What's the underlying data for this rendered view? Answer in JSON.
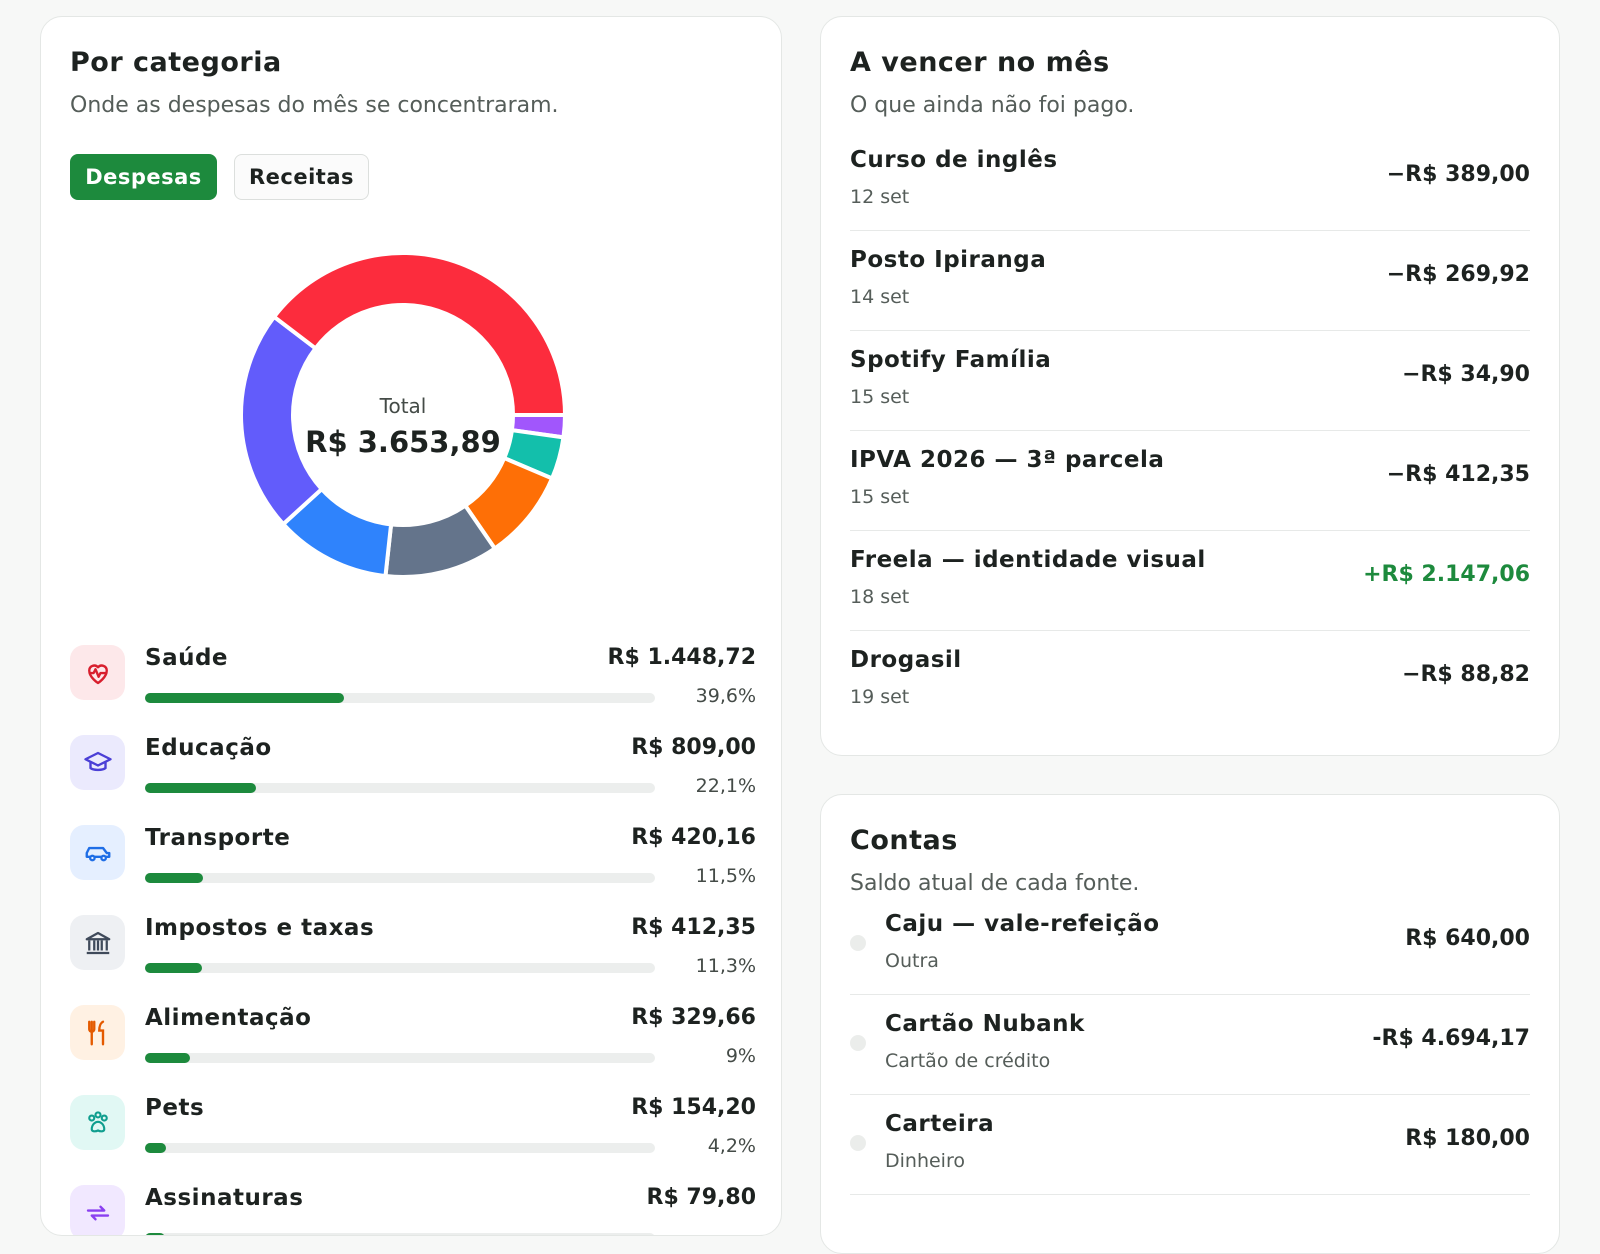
{
  "category_card": {
    "title": "Por categoria",
    "subtitle": "Onde as despesas do mês se concentraram.",
    "toggle": {
      "expenses_label": "Despesas",
      "income_label": "Receitas",
      "selected": "Despesas"
    },
    "donut": {
      "total_label": "Total",
      "total_value": "R$ 3.653,89"
    },
    "categories": [
      {
        "name": "Saúde",
        "amount": "R$ 1.448,72",
        "percent_label": "39,6%",
        "share": 0.396,
        "color": "#fc2c3d",
        "icon": "heart-pulse-icon",
        "icon_bg": "#fde8ea",
        "icon_color": "#d81f2e"
      },
      {
        "name": "Educação",
        "amount": "R$ 809,00",
        "percent_label": "22,1%",
        "share": 0.221,
        "color": "#625cfb",
        "icon": "graduation-cap-icon",
        "icon_bg": "#ebeafd",
        "icon_color": "#4b3fd6"
      },
      {
        "name": "Transporte",
        "amount": "R$ 420,16",
        "percent_label": "11,5%",
        "share": 0.115,
        "color": "#2f83fc",
        "icon": "car-icon",
        "icon_bg": "#e5efff",
        "icon_color": "#1f6ee6"
      },
      {
        "name": "Impostos e taxas",
        "amount": "R$ 412,35",
        "percent_label": "11,3%",
        "share": 0.113,
        "color": "#64748b",
        "icon": "bank-icon",
        "icon_bg": "#eef0f3",
        "icon_color": "#3f4a5a"
      },
      {
        "name": "Alimentação",
        "amount": "R$ 329,66",
        "percent_label": "9%",
        "share": 0.09,
        "color": "#fe6f06",
        "icon": "utensils-icon",
        "icon_bg": "#fff1e3",
        "icon_color": "#e45a00"
      },
      {
        "name": "Pets",
        "amount": "R$ 154,20",
        "percent_label": "4,2%",
        "share": 0.042,
        "color": "#13bfab",
        "icon": "paw-icon",
        "icon_bg": "#e1f8f4",
        "icon_color": "#0f9e8e"
      },
      {
        "name": "Assinaturas",
        "amount": "R$ 79,80",
        "percent_label": "",
        "share": 0.022,
        "color": "#a156fc",
        "icon": "repeat-icon",
        "icon_bg": "#f1e8ff",
        "icon_color": "#8a3ff0"
      }
    ]
  },
  "due_card": {
    "title": "A vencer no mês",
    "subtitle": "O que ainda não foi pago.",
    "items": [
      {
        "name": "Curso de inglês",
        "date": "12 set",
        "amount": "−R$ 389,00",
        "positive": false
      },
      {
        "name": "Posto Ipiranga",
        "date": "14 set",
        "amount": "−R$ 269,92",
        "positive": false
      },
      {
        "name": "Spotify Família",
        "date": "15 set",
        "amount": "−R$ 34,90",
        "positive": false
      },
      {
        "name": "IPVA 2026 — 3ª parcela",
        "date": "15 set",
        "amount": "−R$ 412,35",
        "positive": false
      },
      {
        "name": "Freela — identidade visual",
        "date": "18 set",
        "amount": "+R$ 2.147,06",
        "positive": true
      },
      {
        "name": "Drogasil",
        "date": "19 set",
        "amount": "−R$ 88,82",
        "positive": false
      }
    ]
  },
  "accounts_card": {
    "title": "Contas",
    "subtitle": "Saldo atual de cada fonte.",
    "items": [
      {
        "name": "Caju — vale-refeição",
        "type": "Outra",
        "balance": "R$ 640,00"
      },
      {
        "name": "Cartão Nubank",
        "type": "Cartão de crédito",
        "balance": "-R$ 4.694,17"
      },
      {
        "name": "Carteira",
        "type": "Dinheiro",
        "balance": "R$ 180,00"
      }
    ]
  }
}
